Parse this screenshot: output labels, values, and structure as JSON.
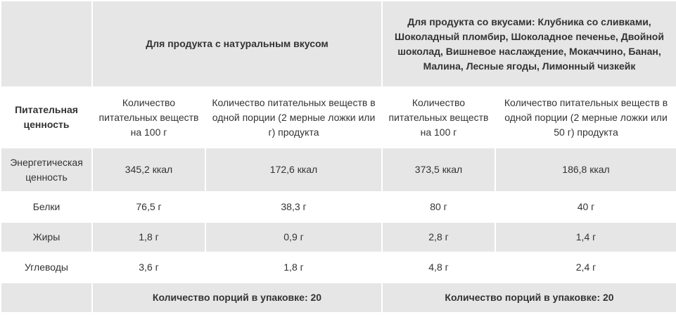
{
  "table": {
    "header": {
      "natural": "Для продукта с натуральным вкусом",
      "flavors": "Для продукта со вкусами: Клубника со сливками, Шоколадный пломбир, Шоколадное печенье, Двойной шоколад, Вишневое наслаждение, Мокаччино, Банан, Малина, Лесные ягоды, Лимонный чизкейк"
    },
    "subheader": {
      "nutritional_value": "Питательная ценность",
      "per100_natural": "Количество питательных веществ на 100 г",
      "per_serving_natural": "Количество питательных веществ в одной порции (2 мерные ложки или  г) продукта",
      "per100_flavors": "Количество питательных веществ на 100 г",
      "per_serving_flavors": "Количество питательных веществ в одной порции (2 мерные ложки или 50 г) продукта"
    },
    "rows": [
      {
        "name": "Энергетическая ценность",
        "v1": "345,2 ккал",
        "v2": "172,6 ккал",
        "v3": "373,5 ккал",
        "v4": "186,8 ккал"
      },
      {
        "name": "Белки",
        "v1": "76,5 г",
        "v2": "38,3 г",
        "v3": "80 г",
        "v4": "40 г"
      },
      {
        "name": "Жиры",
        "v1": "1,8 г",
        "v2": "0,9 г",
        "v3": "2,8 г",
        "v4": "1,4 г"
      },
      {
        "name": "Углеводы",
        "v1": "3,6 г",
        "v2": "1,8 г",
        "v3": "4,8 г",
        "v4": "2,4 г"
      }
    ],
    "footer": {
      "servings_natural": "Количество порций в упаковке: 20",
      "servings_flavors": "Количество порций в упаковке: 20"
    }
  }
}
